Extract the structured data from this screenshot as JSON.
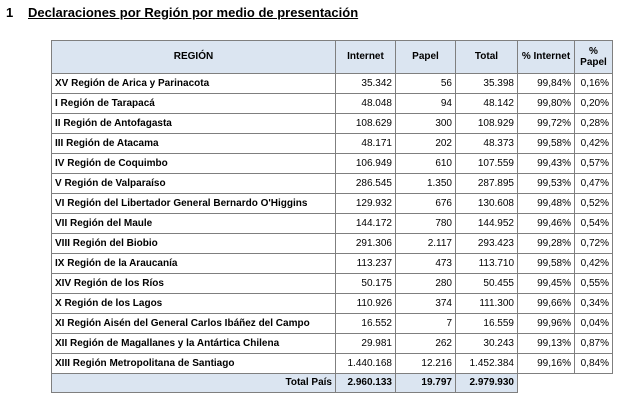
{
  "heading": {
    "number": "1",
    "title": "Declaraciones por Región por medio de presentación"
  },
  "table": {
    "headers": {
      "region": "REGIÓN",
      "internet": "Internet",
      "papel": "Papel",
      "total": "Total",
      "pct_internet": "% Internet",
      "pct_papel": "% Papel"
    },
    "rows": [
      {
        "region": "XV Región de Arica y Parinacota",
        "internet": "35.342",
        "papel": "56",
        "total": "35.398",
        "pct_internet": "99,84%",
        "pct_papel": "0,16%"
      },
      {
        "region": "I Región de Tarapacá",
        "internet": "48.048",
        "papel": "94",
        "total": "48.142",
        "pct_internet": "99,80%",
        "pct_papel": "0,20%"
      },
      {
        "region": "II Región de Antofagasta",
        "internet": "108.629",
        "papel": "300",
        "total": "108.929",
        "pct_internet": "99,72%",
        "pct_papel": "0,28%"
      },
      {
        "region": "III Región de Atacama",
        "internet": "48.171",
        "papel": "202",
        "total": "48.373",
        "pct_internet": "99,58%",
        "pct_papel": "0,42%"
      },
      {
        "region": "IV Región de Coquimbo",
        "internet": "106.949",
        "papel": "610",
        "total": "107.559",
        "pct_internet": "99,43%",
        "pct_papel": "0,57%"
      },
      {
        "region": "V Región de Valparaíso",
        "internet": "286.545",
        "papel": "1.350",
        "total": "287.895",
        "pct_internet": "99,53%",
        "pct_papel": "0,47%"
      },
      {
        "region": "VI Región del Libertador General Bernardo O'Higgins",
        "internet": "129.932",
        "papel": "676",
        "total": "130.608",
        "pct_internet": "99,48%",
        "pct_papel": "0,52%"
      },
      {
        "region": "VII Región del Maule",
        "internet": "144.172",
        "papel": "780",
        "total": "144.952",
        "pct_internet": "99,46%",
        "pct_papel": "0,54%"
      },
      {
        "region": "VIII Región del Biobio",
        "internet": "291.306",
        "papel": "2.117",
        "total": "293.423",
        "pct_internet": "99,28%",
        "pct_papel": "0,72%"
      },
      {
        "region": "IX Región de la Araucanía",
        "internet": "113.237",
        "papel": "473",
        "total": "113.710",
        "pct_internet": "99,58%",
        "pct_papel": "0,42%"
      },
      {
        "region": "XIV Región de los Ríos",
        "internet": "50.175",
        "papel": "280",
        "total": "50.455",
        "pct_internet": "99,45%",
        "pct_papel": "0,55%"
      },
      {
        "region": "X Región de los Lagos",
        "internet": "110.926",
        "papel": "374",
        "total": "111.300",
        "pct_internet": "99,66%",
        "pct_papel": "0,34%"
      },
      {
        "region": "XI Región Aisén del General Carlos Ibáñez del Campo",
        "internet": "16.552",
        "papel": "7",
        "total": "16.559",
        "pct_internet": "99,96%",
        "pct_papel": "0,04%"
      },
      {
        "region": "XII Región de Magallanes y la Antártica Chilena",
        "internet": "29.981",
        "papel": "262",
        "total": "30.243",
        "pct_internet": "99,13%",
        "pct_papel": "0,87%"
      },
      {
        "region": "XIII Región Metropolitana de Santiago",
        "internet": "1.440.168",
        "papel": "12.216",
        "total": "1.452.384",
        "pct_internet": "99,16%",
        "pct_papel": "0,84%"
      }
    ],
    "footer": {
      "label": "Total País",
      "internet": "2.960.133",
      "papel": "19.797",
      "total": "2.979.930"
    }
  },
  "colors": {
    "header_fill": "#dbe5f1",
    "border": "#7f7f7f"
  }
}
